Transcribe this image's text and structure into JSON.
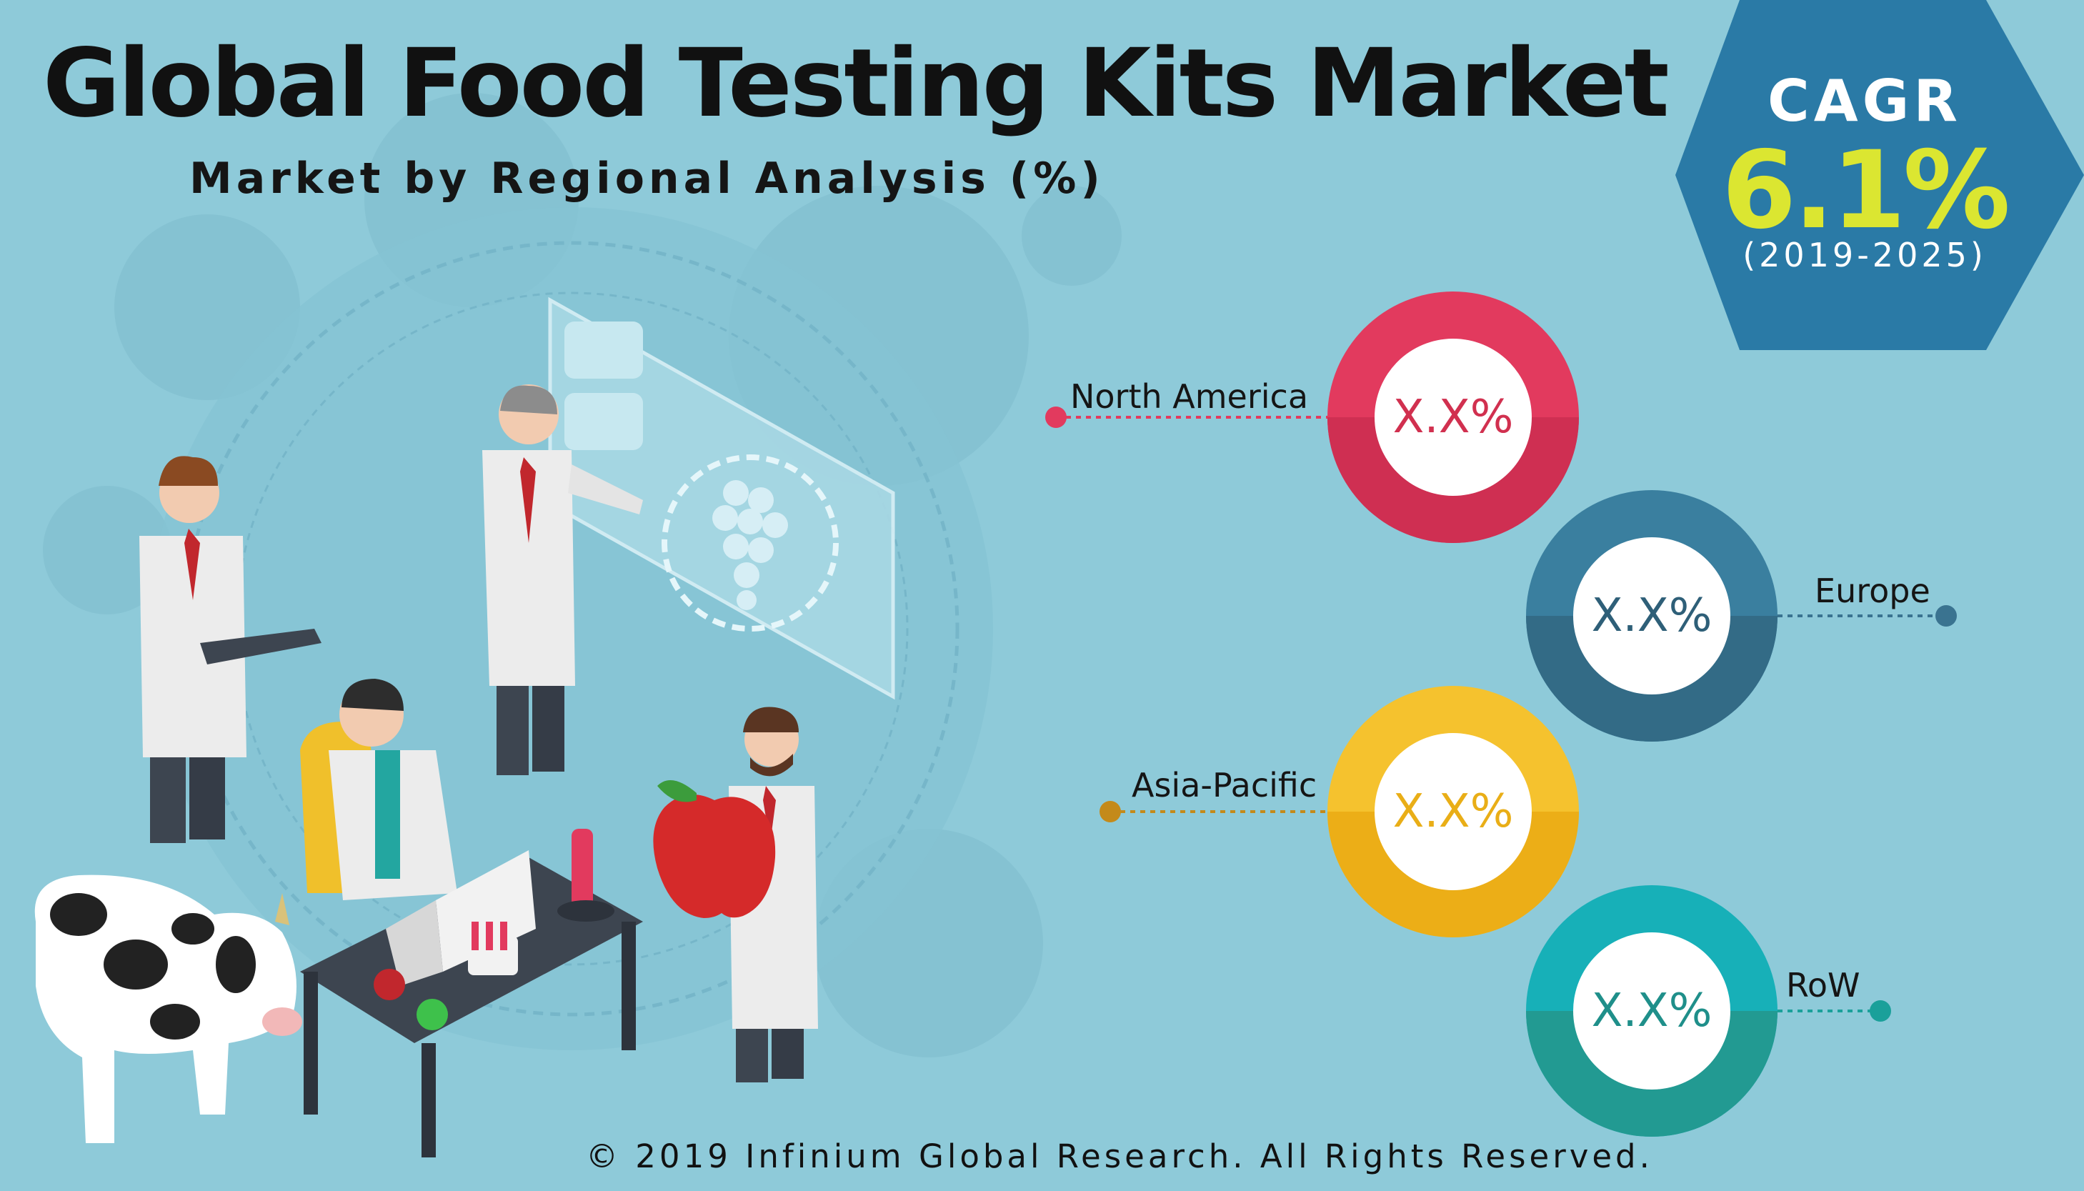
{
  "header": {
    "title": "Global Food Testing Kits Market",
    "subtitle": "Market by Regional Analysis (%)"
  },
  "cagr": {
    "label": "CAGR",
    "value": "6.1%",
    "period": "(2019-2025)"
  },
  "footer": {
    "copyright": "© 2019 Infinium Global Research. All Rights Reserved."
  },
  "colors": {
    "background": "#8ecad9",
    "hexagon": "#2a7aa6",
    "north_america": "#e23a5e",
    "europe": "#3a7390",
    "asia_pacific": "#f3b823",
    "row": "#1aaab2"
  },
  "chart_data": {
    "type": "infographic",
    "title": "Global Food Testing Kits Market",
    "subtitle": "Market by Regional Analysis (%)",
    "categories": [
      "North America",
      "Europe",
      "Asia-Pacific",
      "RoW"
    ],
    "value_labels": [
      "X.X%",
      "X.X%",
      "X.X%",
      "X.X%"
    ]
  },
  "illustration": {
    "icons": [
      "scientist-icon",
      "cow-icon",
      "apple-icon",
      "microscope-icon",
      "laptop-icon",
      "test-tube-icon",
      "holographic-screen-icon",
      "grapes-icon"
    ]
  }
}
